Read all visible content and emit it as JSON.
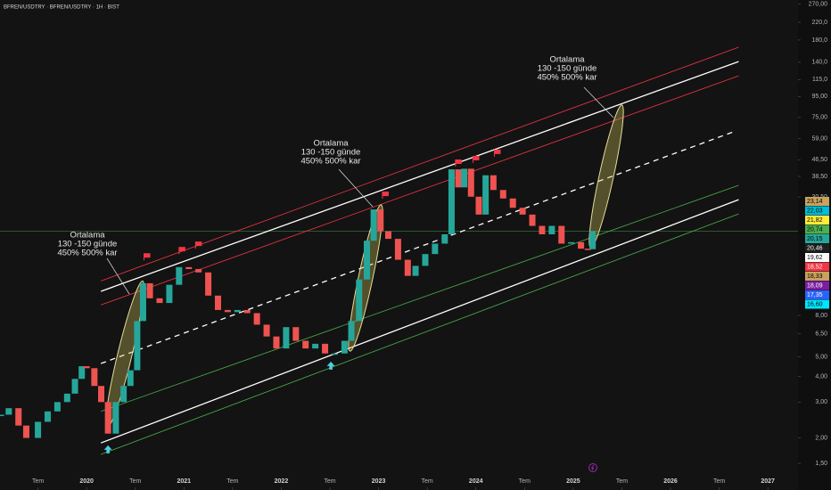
{
  "chart_data": {
    "type": "candles",
    "title": "BFREN/USDTRY · BFREN/USDTRY · 1H · BIST",
    "log_scale": true,
    "up_color": "#26a69a",
    "down_color": "#ef5350",
    "x": [
      2019.12,
      2019.2,
      2019.3,
      2019.38,
      2019.5,
      2019.6,
      2019.7,
      2019.8,
      2019.88,
      2019.95,
      2020.0,
      2020.08,
      2020.15,
      2020.22,
      2020.3,
      2020.38,
      2020.45,
      2020.52,
      2020.58,
      2020.65,
      2020.75,
      2020.85,
      2020.95,
      2021.05,
      2021.15,
      2021.25,
      2021.35,
      2021.45,
      2021.55,
      2021.65,
      2021.75,
      2021.85,
      2021.95,
      2022.05,
      2022.15,
      2022.25,
      2022.35,
      2022.45,
      2022.55,
      2022.65,
      2022.72,
      2022.8,
      2022.88,
      2022.95,
      2023.02,
      2023.1,
      2023.2,
      2023.3,
      2023.38,
      2023.48,
      2023.58,
      2023.68,
      2023.75,
      2023.82,
      2023.88,
      2023.95,
      2024.03,
      2024.1,
      2024.18,
      2024.28,
      2024.38,
      2024.48,
      2024.58,
      2024.68,
      2024.78,
      2024.88,
      2024.98,
      2025.08,
      2025.15,
      2025.2
    ],
    "values": [
      2.6,
      2.8,
      2.3,
      2.0,
      2.4,
      2.7,
      3.0,
      3.3,
      3.9,
      4.5,
      4.4,
      3.6,
      3.0,
      2.1,
      3.0,
      3.6,
      4.3,
      7.5,
      11.5,
      9.7,
      9.2,
      11.3,
      13.8,
      13.5,
      13.0,
      10.0,
      8.5,
      8.3,
      8.5,
      8.2,
      7.2,
      6.3,
      5.5,
      7.0,
      6.0,
      5.5,
      5.8,
      5.2,
      5.2,
      6.0,
      7.5,
      12,
      18.6,
      26.5,
      20.7,
      19,
      15,
      12.5,
      14,
      16,
      18,
      20,
      41.7,
      34,
      42,
      30.6,
      25,
      39,
      33,
      30,
      27,
      25,
      22,
      20,
      22,
      18,
      18.3,
      17,
      16.9,
      20.7
    ],
    "xlim": [
      2019.11,
      2027.31
    ],
    "ylim": [
      1.11,
      283
    ],
    "xticks": [
      {
        "value": 2019.5,
        "label": "Tem"
      },
      2020,
      {
        "value": 2020.5,
        "label": "Tem"
      },
      2021,
      {
        "value": 2021.5,
        "label": "Tem"
      },
      2022,
      {
        "value": 2022.5,
        "label": "Tem"
      },
      2023,
      {
        "value": 2023.5,
        "label": "Tem"
      },
      2024,
      {
        "value": 2024.5,
        "label": "Tem"
      },
      2025,
      {
        "value": 2025.5,
        "label": "Tem"
      },
      2026,
      {
        "value": 2026.5,
        "label": "Tem"
      },
      2027
    ],
    "yticks": [
      {
        "value": 270,
        "label": "270,00"
      },
      {
        "value": 220,
        "label": "220,0"
      },
      {
        "value": 180,
        "label": "180,0"
      },
      {
        "value": 140,
        "label": "140,0"
      },
      {
        "value": 115,
        "label": "115,0"
      },
      {
        "value": 95,
        "label": "95,00"
      },
      {
        "value": 75,
        "label": "75,00"
      },
      {
        "value": 59,
        "label": "59,00"
      },
      {
        "value": 46.5,
        "label": "46,50"
      },
      {
        "value": 38.5,
        "label": "38,50"
      },
      {
        "value": 30.5,
        "label": "30,50"
      },
      {
        "value": 8,
        "label": "8,00"
      },
      {
        "value": 6.5,
        "label": "6,50"
      },
      {
        "value": 5,
        "label": "5,00"
      },
      {
        "value": 4,
        "label": "4,00"
      },
      {
        "value": 3,
        "label": "3,00"
      },
      {
        "value": 2,
        "label": "2,00"
      },
      {
        "value": 1.5,
        "label": "1,50"
      }
    ],
    "lines": [
      {
        "color": "#f23645",
        "style": "solid",
        "x": [
          2020.147,
          2026.7
        ],
        "y": [
          11.8,
          166
        ]
      },
      {
        "color": "#ffffff",
        "style": "solid",
        "x": [
          2020.147,
          2026.7
        ],
        "y": [
          10.5,
          141
        ]
      },
      {
        "color": "#f23645",
        "style": "solid",
        "x": [
          2020.147,
          2026.7
        ],
        "y": [
          9.0,
          120
        ]
      },
      {
        "color": "#ffffff",
        "style": "dashed",
        "x": [
          2020.147,
          2026.65
        ],
        "y": [
          4.64,
          63.8
        ]
      },
      {
        "color": "#4caf50",
        "style": "solid",
        "x": [
          2020.147,
          2026.7
        ],
        "y": [
          2.7,
          34.8
        ]
      },
      {
        "color": "#ffffff",
        "style": "solid",
        "x": [
          2020.147,
          2026.7
        ],
        "y": [
          1.89,
          29.6
        ]
      },
      {
        "color": "#4caf50",
        "style": "solid",
        "x": [
          2020.147,
          2026.7
        ],
        "y": [
          1.66,
          25.2
        ]
      }
    ],
    "flags": {
      "color": "#f23645",
      "x": [
        2020.59,
        2020.95,
        2021.12,
        2023.04,
        2023.79,
        2023.97,
        2024.19
      ],
      "y": [
        14.9,
        16.0,
        17.0,
        29.9,
        43.0,
        44.8,
        48.1
      ]
    },
    "arrows": {
      "color": "#4dd0e1",
      "x": [
        2020.22,
        2022.51
      ],
      "y": [
        1.84,
        4.74
      ]
    },
    "annotations": [
      {
        "lines": [
          "Ortalama",
          "130 -150 günde",
          "450% 500% kar"
        ]
      },
      {
        "lines": [
          "Ortalama",
          "130 -150 günde",
          "450% 500% kar"
        ]
      },
      {
        "lines": [
          "Ortalama",
          "130 -150 günde",
          "450% 500% kar"
        ]
      }
    ],
    "price_labels": [
      {
        "value": 23.14,
        "label": "23,14",
        "color": "#c8a25e",
        "text_color": "#000000"
      },
      {
        "value": 22.03,
        "label": "22,03",
        "color": "#00bcd4",
        "text_color": "#000000"
      },
      {
        "value": 21.82,
        "label": "21,82",
        "color": "#ffeb3b",
        "text_color": "#000000"
      },
      {
        "value": 20.74,
        "label": "20,74",
        "color": "#4caf50",
        "text_color": "#000000",
        "line": true
      },
      {
        "value": 20.15,
        "label": "20,15",
        "color": "#26a69a",
        "text_color": "#000000"
      },
      {
        "value": 20.46,
        "label": "20,46",
        "color": "#1e1e1e",
        "text_color": "#ffffff"
      },
      {
        "value": 19.62,
        "label": "19,62",
        "color": "#ffffff",
        "text_color": "#000000"
      },
      {
        "value": 18.52,
        "label": "18,52",
        "color": "#f23645",
        "text_color": "#ffffff"
      },
      {
        "value": 18.33,
        "label": "18,33",
        "color": "#c8a25e",
        "text_color": "#000000"
      },
      {
        "value": 18.09,
        "label": "18,09",
        "color": "#7b1fa2",
        "text_color": "#ffffff"
      },
      {
        "value": 17.35,
        "label": "17,35",
        "color": "#2962ff",
        "text_color": "#ffffff"
      },
      {
        "value": 16.6,
        "label": "16,60",
        "color": "#00e5ff",
        "text_color": "#000000"
      }
    ]
  }
}
